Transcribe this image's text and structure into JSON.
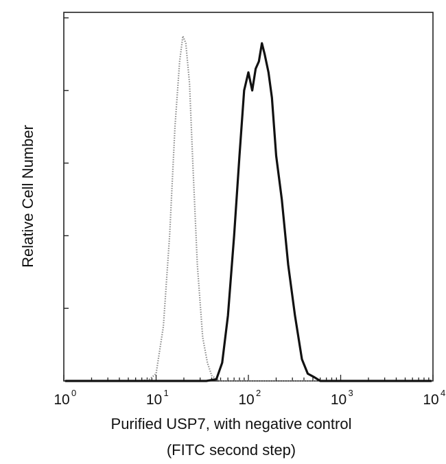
{
  "chart_data": {
    "type": "line",
    "title": "",
    "xlabel": "Purified USP7, with negative control",
    "xlabel_line2": "(FITC second step)",
    "ylabel": "Relative Cell Number",
    "x_scale": "log",
    "xlim": [
      1,
      10000
    ],
    "ylim": [
      0,
      1
    ],
    "grid": false,
    "legend": "none",
    "x_ticks": [
      {
        "base": "10",
        "exp": "0",
        "value": 1
      },
      {
        "base": "10",
        "exp": "1",
        "value": 10
      },
      {
        "base": "10",
        "exp": "2",
        "value": 100
      },
      {
        "base": "10",
        "exp": "3",
        "value": 1000
      },
      {
        "base": "10",
        "exp": "4",
        "value": 10000
      }
    ],
    "y_ticks": [
      0,
      0.2,
      0.4,
      0.6,
      0.8,
      1.0
    ],
    "series": [
      {
        "style": "dotted",
        "color": "#8a8a8a",
        "x": [
          7,
          8.5,
          10,
          12,
          14,
          16,
          18,
          19.5,
          21,
          23,
          25,
          28,
          32,
          36,
          40,
          45,
          50,
          60
        ],
        "y": [
          0.0,
          0.005,
          0.02,
          0.15,
          0.4,
          0.7,
          0.88,
          0.95,
          0.93,
          0.82,
          0.6,
          0.32,
          0.12,
          0.05,
          0.015,
          0.005,
          0.0,
          0.0
        ]
      },
      {
        "style": "solid",
        "color": "#111111",
        "x": [
          35,
          45,
          52,
          60,
          70,
          80,
          90,
          100,
          110,
          120,
          130,
          140,
          150,
          165,
          180,
          200,
          230,
          270,
          320,
          380,
          440,
          520,
          600
        ],
        "y": [
          0.0,
          0.005,
          0.05,
          0.18,
          0.4,
          0.62,
          0.8,
          0.85,
          0.8,
          0.86,
          0.88,
          0.93,
          0.9,
          0.85,
          0.78,
          0.62,
          0.5,
          0.32,
          0.18,
          0.06,
          0.02,
          0.01,
          0.0
        ]
      }
    ]
  }
}
